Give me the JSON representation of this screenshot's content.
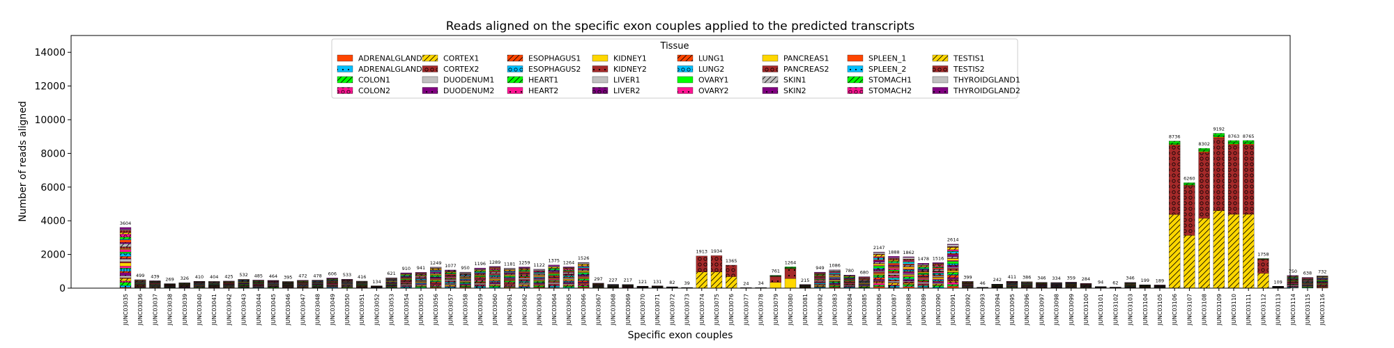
{
  "chart_data": {
    "type": "bar",
    "stacked": true,
    "title": "Reads aligned on the specific exon couples applied to the predicted transcripts",
    "xlabel": "Specific exon couples",
    "ylabel": "Number of reads aligned",
    "ylim": [
      0,
      15000
    ],
    "yticks": [
      0,
      2000,
      4000,
      6000,
      8000,
      10000,
      12000,
      14000
    ],
    "grid": false,
    "legend": {
      "title": "Tissue",
      "placement": "top-center",
      "columns": 8
    },
    "categories": [
      "JUNC03035",
      "JUNC03036",
      "JUNC03037",
      "JUNC03038",
      "JUNC03039",
      "JUNC03040",
      "JUNC03041",
      "JUNC03042",
      "JUNC03043",
      "JUNC03044",
      "JUNC03045",
      "JUNC03046",
      "JUNC03047",
      "JUNC03048",
      "JUNC03049",
      "JUNC03050",
      "JUNC03051",
      "JUNC03052",
      "JUNC03053",
      "JUNC03054",
      "JUNC03055",
      "JUNC03056",
      "JUNC03057",
      "JUNC03058",
      "JUNC03059",
      "JUNC03060",
      "JUNC03061",
      "JUNC03062",
      "JUNC03063",
      "JUNC03064",
      "JUNC03065",
      "JUNC03066",
      "JUNC03067",
      "JUNC03068",
      "JUNC03069",
      "JUNC03070",
      "JUNC03071",
      "JUNC03072",
      "JUNC03073",
      "JUNC03074",
      "JUNC03075",
      "JUNC03076",
      "JUNC03077",
      "JUNC03078",
      "JUNC03079",
      "JUNC03080",
      "JUNC03081",
      "JUNC03082",
      "JUNC03083",
      "JUNC03084",
      "JUNC03085",
      "JUNC03086",
      "JUNC03087",
      "JUNC03088",
      "JUNC03089",
      "JUNC03090",
      "JUNC03091",
      "JUNC03092",
      "JUNC03093",
      "JUNC03094",
      "JUNC03095",
      "JUNC03096",
      "JUNC03097",
      "JUNC03098",
      "JUNC03099",
      "JUNC03100",
      "JUNC03101",
      "JUNC03102",
      "JUNC03103",
      "JUNC03104",
      "JUNC03105",
      "JUNC03106",
      "JUNC03107",
      "JUNC03108",
      "JUNC03109",
      "JUNC03110",
      "JUNC03111",
      "JUNC03112",
      "JUNC03113",
      "JUNC03114",
      "JUNC03115",
      "JUNC03116"
    ],
    "totals": [
      3604,
      499,
      439,
      269,
      326,
      410,
      404,
      425,
      532,
      485,
      464,
      395,
      472,
      478,
      606,
      533,
      416,
      134,
      621,
      910,
      941,
      1249,
      1077,
      950,
      1196,
      1289,
      1181,
      1259,
      1122,
      1375,
      1264,
      1526,
      297,
      227,
      217,
      121,
      131,
      82,
      39,
      1913,
      1934,
      1365,
      24,
      34,
      761,
      1264,
      215,
      949,
      1086,
      780,
      680,
      2147,
      1888,
      1862,
      1478,
      1516,
      2614,
      399,
      46,
      242,
      411,
      386,
      346,
      334,
      359,
      284,
      94,
      62,
      346,
      199,
      189,
      8736,
      6260,
      8302,
      9192,
      8763,
      8765,
      1758,
      109,
      750,
      638,
      732
    ],
    "series": [
      {
        "name": "ADRENALGLAND1",
        "color": "#ff4500",
        "hatch": "none"
      },
      {
        "name": "ADRENALGLAND2",
        "color": "#00bfff",
        "hatch": "dots"
      },
      {
        "name": "COLON1",
        "color": "#00ff00",
        "hatch": "slash"
      },
      {
        "name": "COLON2",
        "color": "#ff1493",
        "hatch": "circles"
      },
      {
        "name": "CORTEX1",
        "color": "#ffd700",
        "hatch": "slash"
      },
      {
        "name": "CORTEX2",
        "color": "#a52a2a",
        "hatch": "circles"
      },
      {
        "name": "DUODENUM1",
        "color": "#c0c0c0",
        "hatch": "none"
      },
      {
        "name": "DUODENUM2",
        "color": "#800080",
        "hatch": "dots"
      },
      {
        "name": "ESOPHAGUS1",
        "color": "#ff4500",
        "hatch": "slash"
      },
      {
        "name": "ESOPHAGUS2",
        "color": "#00bfff",
        "hatch": "circles"
      },
      {
        "name": "HEART1",
        "color": "#00ff00",
        "hatch": "slash"
      },
      {
        "name": "HEART2",
        "color": "#ff1493",
        "hatch": "dots"
      },
      {
        "name": "KIDNEY1",
        "color": "#ffd700",
        "hatch": "none"
      },
      {
        "name": "KIDNEY2",
        "color": "#a52a2a",
        "hatch": "dots"
      },
      {
        "name": "LIVER1",
        "color": "#c0c0c0",
        "hatch": "none"
      },
      {
        "name": "LIVER2",
        "color": "#800080",
        "hatch": "circles"
      },
      {
        "name": "LUNG1",
        "color": "#ff4500",
        "hatch": "slash"
      },
      {
        "name": "LUNG2",
        "color": "#00bfff",
        "hatch": "circles"
      },
      {
        "name": "OVARY1",
        "color": "#00ff00",
        "hatch": "none"
      },
      {
        "name": "OVARY2",
        "color": "#ff1493",
        "hatch": "dots"
      },
      {
        "name": "PANCREAS1",
        "color": "#ffd700",
        "hatch": "none"
      },
      {
        "name": "PANCREAS2",
        "color": "#a52a2a",
        "hatch": "circles"
      },
      {
        "name": "SKIN1",
        "color": "#c0c0c0",
        "hatch": "slash"
      },
      {
        "name": "SKIN2",
        "color": "#800080",
        "hatch": "dots"
      },
      {
        "name": "SPLEEN_1",
        "color": "#ff4500",
        "hatch": "none"
      },
      {
        "name": "SPLEEN_2",
        "color": "#00bfff",
        "hatch": "dots"
      },
      {
        "name": "STOMACH1",
        "color": "#00ff00",
        "hatch": "slash"
      },
      {
        "name": "STOMACH2",
        "color": "#ff1493",
        "hatch": "circles"
      },
      {
        "name": "TESTIS1",
        "color": "#ffd700",
        "hatch": "slash"
      },
      {
        "name": "TESTIS2",
        "color": "#a52a2a",
        "hatch": "circles"
      },
      {
        "name": "THYROIDGLAND1",
        "color": "#c0c0c0",
        "hatch": "none"
      },
      {
        "name": "THYROIDGLAND2",
        "color": "#800080",
        "hatch": "dots"
      }
    ],
    "dominant_profile": {
      "CORTEX1": 0.5,
      "CORTEX2": 0.5,
      "KIDNEY1": 0.45,
      "KIDNEY2": 0.45,
      "TESTIS1": 0.5,
      "TESTIS2": 0.47
    },
    "dominant_bars": [
      "JUNC03074",
      "JUNC03075",
      "JUNC03076",
      "JUNC03079",
      "JUNC03080",
      "JUNC03106",
      "JUNC03107",
      "JUNC03108",
      "JUNC03109",
      "JUNC03110",
      "JUNC03111",
      "JUNC03112"
    ]
  }
}
